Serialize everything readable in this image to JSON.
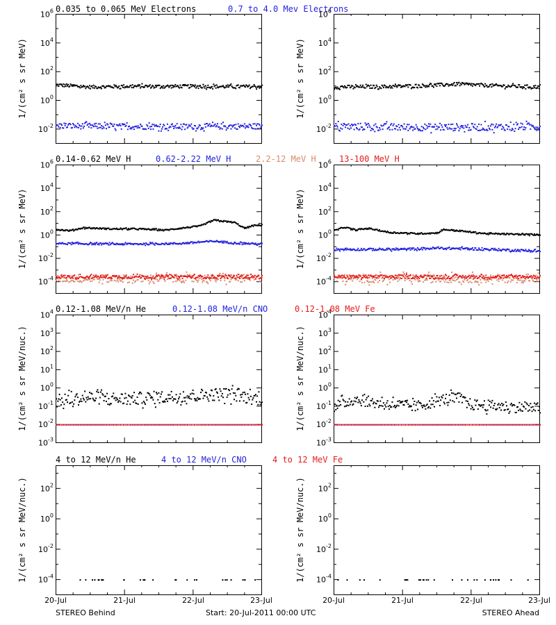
{
  "colors": {
    "black": "#000000",
    "blue": "#1f1fe0",
    "salmon": "#d98a6a",
    "red": "#e41a1a"
  },
  "headers": [
    [
      {
        "text": "0.035 to 0.065 MeV Electrons",
        "color": "black"
      },
      {
        "text": "0.7 to 4.0 Mev Electrons",
        "color": "blue"
      }
    ],
    [
      {
        "text": "0.14-0.62 MeV H",
        "color": "black"
      },
      {
        "text": "0.62-2.22 MeV H",
        "color": "blue"
      },
      {
        "text": "2.2-12 MeV H",
        "color": "salmon"
      },
      {
        "text": "13-100 MeV H",
        "color": "red"
      }
    ],
    [
      {
        "text": "0.12-1.08 MeV/n He",
        "color": "black"
      },
      {
        "text": "0.12-1.08 MeV/n CNO",
        "color": "blue"
      },
      {
        "text": "0.12-1.08 MeV Fe",
        "color": "red"
      }
    ],
    [
      {
        "text": "4 to 12 MeV/n He",
        "color": "black"
      },
      {
        "text": "4 to 12 MeV/n CNO",
        "color": "blue"
      },
      {
        "text": "4 to 12 MeV Fe",
        "color": "red"
      }
    ]
  ],
  "ylabels": [
    "1/(cm² s sr MeV)",
    "1/(cm² s sr MeV)",
    "1/(cm² s sr MeV/nuc.)",
    "1/(cm² s sr MeV/nuc.)"
  ],
  "xticks": [
    "20-Jul",
    "21-Jul",
    "22-Jul",
    "23-Jul"
  ],
  "footer": {
    "left": "STEREO Behind",
    "center": "Start: 20-Jul-2011 00:00 UTC",
    "right": "STEREO Ahead"
  },
  "chart_data": [
    {
      "type": "scatter",
      "panel": "behind-electrons",
      "log_y": true,
      "ylim_exp": [
        -3,
        6
      ],
      "yticks_exp": [
        -2,
        0,
        2,
        4,
        6
      ],
      "xlim_days": [
        0,
        3
      ],
      "series": [
        {
          "name": "0.035 to 0.065 MeV Electrons",
          "color": "black",
          "profile": [
            [
              0,
              1.1
            ],
            [
              0.5,
              0.95
            ],
            [
              1,
              1.0
            ],
            [
              1.5,
              1.0
            ],
            [
              2,
              1.0
            ],
            [
              2.5,
              0.98
            ],
            [
              3,
              0.98
            ]
          ],
          "scatter": 0.12
        },
        {
          "name": "0.7 to 4.0 Mev Electrons",
          "color": "blue",
          "profile": [
            [
              0,
              -1.75
            ],
            [
              1,
              -1.8
            ],
            [
              2,
              -1.8
            ],
            [
              3,
              -1.78
            ]
          ],
          "scatter": 0.2
        }
      ]
    },
    {
      "type": "scatter",
      "panel": "ahead-electrons",
      "log_y": true,
      "ylim_exp": [
        -3,
        6
      ],
      "yticks_exp": [
        -2,
        0,
        2,
        4,
        6
      ],
      "xlim_days": [
        0,
        3
      ],
      "series": [
        {
          "color": "black",
          "profile": [
            [
              0,
              0.95
            ],
            [
              0.8,
              0.98
            ],
            [
              1.3,
              1.05
            ],
            [
              1.8,
              1.15
            ],
            [
              2.3,
              1.05
            ],
            [
              3,
              0.95
            ]
          ],
          "scatter": 0.12
        },
        {
          "color": "blue",
          "profile": [
            [
              0,
              -1.8
            ],
            [
              1,
              -1.85
            ],
            [
              2,
              -1.85
            ],
            [
              3,
              -1.8
            ]
          ],
          "scatter": 0.25
        }
      ]
    },
    {
      "type": "scatter",
      "panel": "behind-protons",
      "log_y": true,
      "ylim_exp": [
        -5,
        6
      ],
      "yticks_exp": [
        -4,
        -2,
        0,
        2,
        4,
        6
      ],
      "xlim_days": [
        0,
        3
      ],
      "series": [
        {
          "name": "0.14-0.62 MeV H",
          "color": "black",
          "profile": [
            [
              0,
              0.5
            ],
            [
              0.2,
              0.4
            ],
            [
              0.4,
              0.65
            ],
            [
              0.8,
              0.55
            ],
            [
              1.2,
              0.55
            ],
            [
              1.6,
              0.45
            ],
            [
              1.8,
              0.6
            ],
            [
              2.1,
              0.8
            ],
            [
              2.3,
              1.3
            ],
            [
              2.6,
              1.1
            ],
            [
              2.75,
              0.6
            ],
            [
              2.85,
              0.8
            ],
            [
              3,
              0.9
            ]
          ],
          "scatter": 0.06
        },
        {
          "name": "0.62-2.22 MeV H",
          "color": "blue",
          "profile": [
            [
              0,
              -0.7
            ],
            [
              1,
              -0.75
            ],
            [
              1.8,
              -0.7
            ],
            [
              2.3,
              -0.5
            ],
            [
              2.6,
              -0.65
            ],
            [
              3,
              -0.75
            ]
          ],
          "scatter": 0.08
        },
        {
          "name": "2.2-12 MeV H",
          "color": "salmon",
          "profile": [
            [
              0,
              -3.7
            ],
            [
              3,
              -3.7
            ]
          ],
          "scatter": 0.35
        },
        {
          "name": "13-100 MeV H",
          "color": "red",
          "profile": [
            [
              0,
              -3.55
            ],
            [
              3,
              -3.55
            ]
          ],
          "scatter": 0.15
        }
      ]
    },
    {
      "type": "scatter",
      "panel": "ahead-protons",
      "log_y": true,
      "ylim_exp": [
        -5,
        6
      ],
      "yticks_exp": [
        -4,
        -2,
        0,
        2,
        4,
        6
      ],
      "xlim_days": [
        0,
        3
      ],
      "series": [
        {
          "color": "black",
          "profile": [
            [
              0,
              0.4
            ],
            [
              0.15,
              0.7
            ],
            [
              0.3,
              0.45
            ],
            [
              0.5,
              0.6
            ],
            [
              0.8,
              0.25
            ],
            [
              1.2,
              0.15
            ],
            [
              1.5,
              0.2
            ],
            [
              1.6,
              0.5
            ],
            [
              1.8,
              0.4
            ],
            [
              2.2,
              0.15
            ],
            [
              2.6,
              0.1
            ],
            [
              3,
              0.05
            ]
          ],
          "scatter": 0.06
        },
        {
          "color": "blue",
          "profile": [
            [
              0,
              -1.2
            ],
            [
              1,
              -1.2
            ],
            [
              1.5,
              -1.1
            ],
            [
              2,
              -1.15
            ],
            [
              3,
              -1.35
            ]
          ],
          "scatter": 0.1
        },
        {
          "color": "salmon",
          "profile": [
            [
              0,
              -3.7
            ],
            [
              3,
              -3.7
            ]
          ],
          "scatter": 0.35
        },
        {
          "color": "red",
          "profile": [
            [
              0,
              -3.55
            ],
            [
              3,
              -3.55
            ]
          ],
          "scatter": 0.15
        }
      ]
    },
    {
      "type": "scatter",
      "panel": "behind-heavy",
      "log_y": true,
      "ylim_exp": [
        -3,
        4
      ],
      "yticks_exp": [
        -3,
        -2,
        -1,
        0,
        1,
        2,
        3,
        4
      ],
      "xlim_days": [
        0,
        3
      ],
      "series": [
        {
          "name": "0.12-1.08 MeV/n He",
          "color": "black",
          "profile": [
            [
              0,
              -0.7
            ],
            [
              0.5,
              -0.5
            ],
            [
              1,
              -0.6
            ],
            [
              1.5,
              -0.5
            ],
            [
              2,
              -0.4
            ],
            [
              2.5,
              -0.3
            ],
            [
              2.8,
              -0.5
            ],
            [
              3,
              -0.6
            ]
          ],
          "scatter": 0.35
        },
        {
          "name": "0.12-1.08 MeV/n CNO",
          "color": "blue",
          "profile": [
            [
              0,
              -2
            ],
            [
              3,
              -2
            ]
          ],
          "scatter": 0
        },
        {
          "name": "0.12-1.08 MeV Fe",
          "color": "red",
          "profile": [
            [
              0,
              -2
            ],
            [
              3,
              -2
            ]
          ],
          "scatter": 0
        }
      ]
    },
    {
      "type": "scatter",
      "panel": "ahead-heavy",
      "log_y": true,
      "ylim_exp": [
        -3,
        4
      ],
      "yticks_exp": [
        -3,
        -2,
        -1,
        0,
        1,
        2,
        3,
        4
      ],
      "xlim_days": [
        0,
        3
      ],
      "series": [
        {
          "color": "black",
          "profile": [
            [
              0,
              -1.0
            ],
            [
              0.3,
              -0.6
            ],
            [
              0.6,
              -0.8
            ],
            [
              1.2,
              -1.0
            ],
            [
              1.6,
              -0.6
            ],
            [
              1.8,
              -0.5
            ],
            [
              2,
              -0.9
            ],
            [
              3,
              -1.1
            ]
          ],
          "scatter": 0.3
        },
        {
          "color": "blue",
          "profile": [
            [
              0,
              -2
            ],
            [
              3,
              -2
            ]
          ],
          "scatter": 0
        },
        {
          "color": "red",
          "profile": [
            [
              0,
              -2
            ],
            [
              3,
              -2
            ]
          ],
          "scatter": 0
        }
      ]
    },
    {
      "type": "scatter",
      "panel": "behind-high",
      "log_y": true,
      "ylim_exp": [
        -5,
        3.5
      ],
      "yticks_exp": [
        -4,
        -2,
        0,
        2
      ],
      "xlim_days": [
        0,
        3
      ],
      "series": [
        {
          "name": "4 to 12 MeV/n He",
          "color": "black",
          "profile": [
            [
              0,
              -4
            ],
            [
              3,
              -4
            ]
          ],
          "scatter": 0,
          "sparse": true
        }
      ]
    },
    {
      "type": "scatter",
      "panel": "ahead-high",
      "log_y": true,
      "ylim_exp": [
        -5,
        3.5
      ],
      "yticks_exp": [
        -4,
        -2,
        0,
        2
      ],
      "xlim_days": [
        0,
        3
      ],
      "series": [
        {
          "color": "black",
          "profile": [
            [
              0,
              -4
            ],
            [
              3,
              -4
            ]
          ],
          "scatter": 0,
          "sparse": true
        }
      ]
    }
  ]
}
